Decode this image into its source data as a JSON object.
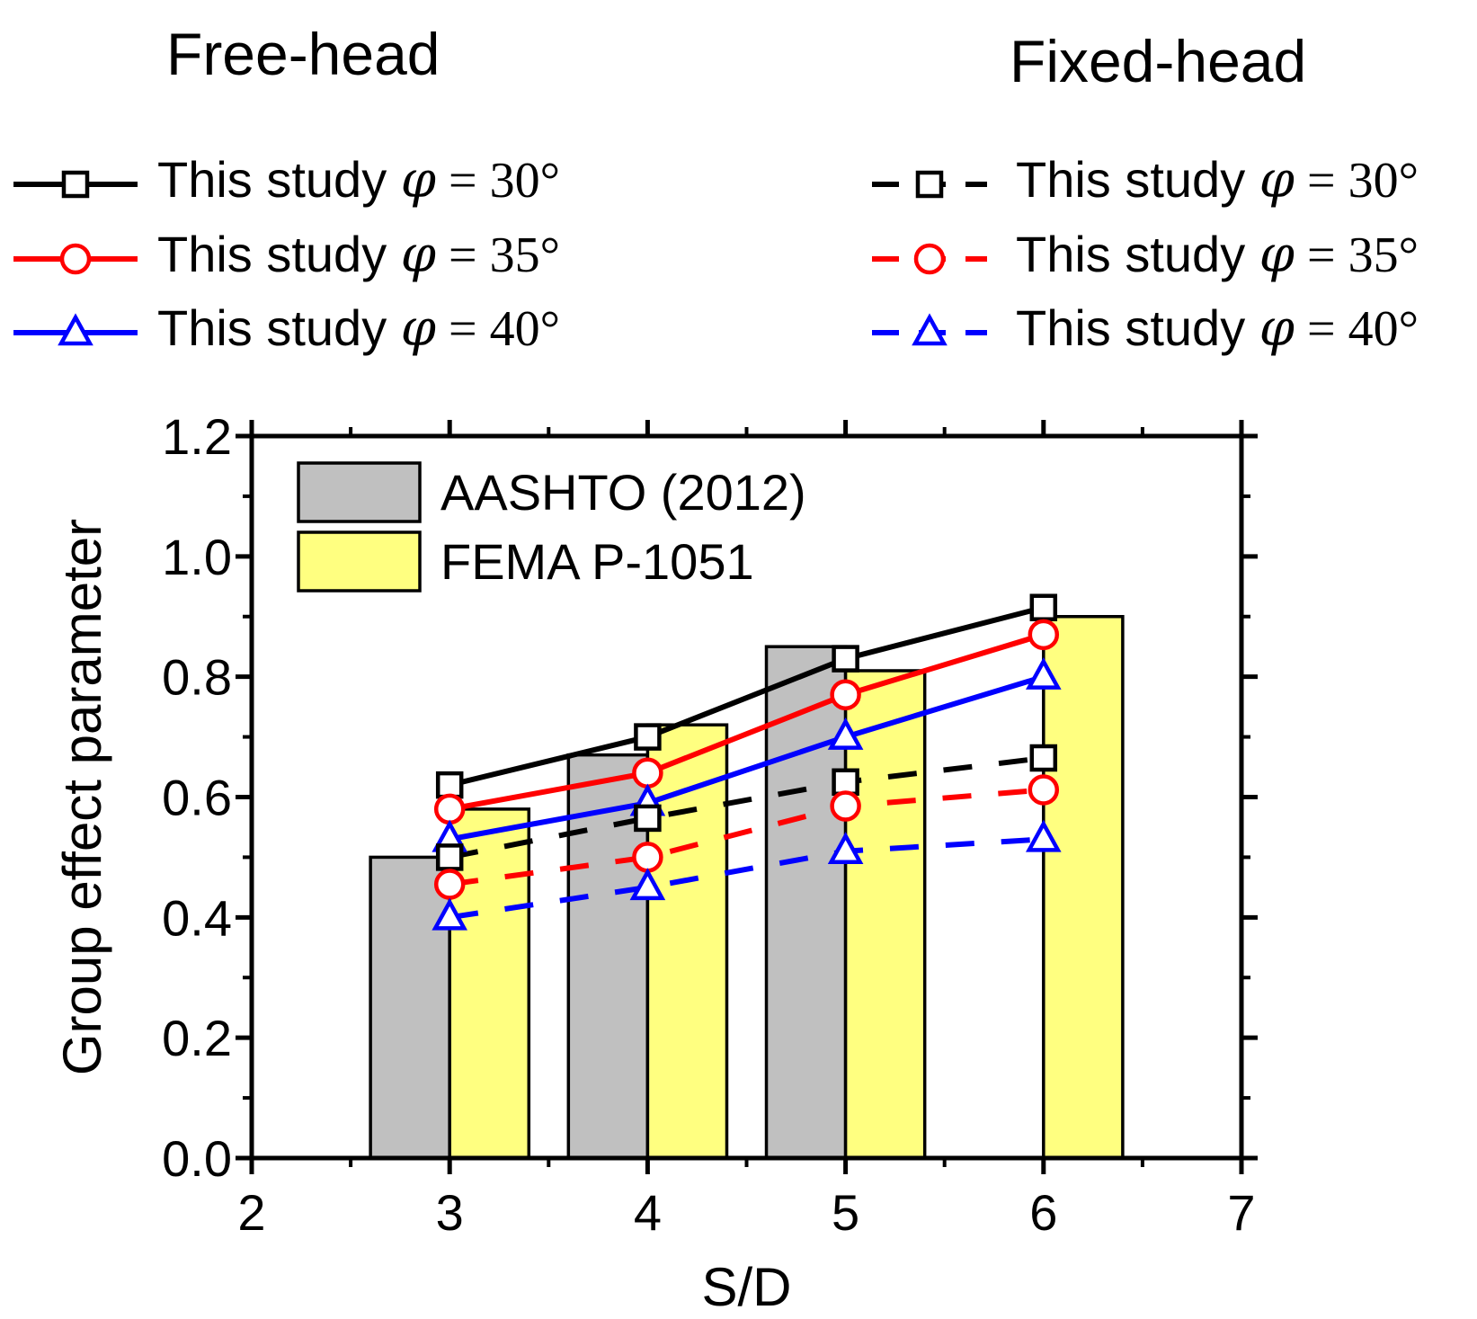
{
  "headings": {
    "left": "Free-head",
    "right": "Fixed-head"
  },
  "legend_prefix": "This study",
  "chart_data": {
    "type": "bar",
    "xlabel": "S/D",
    "ylabel": "Group effect parameter",
    "xlim": [
      2,
      7
    ],
    "ylim": [
      0,
      1.2
    ],
    "x_ticks": [
      "2",
      "3",
      "4",
      "5",
      "6",
      "7"
    ],
    "y_ticks": [
      "0.0",
      "0.2",
      "0.4",
      "0.6",
      "0.8",
      "1.0",
      "1.2"
    ],
    "bar_series": [
      {
        "name": "AASHTO (2012)",
        "color": "#c0c0c0",
        "x": [
          3,
          4,
          5,
          6
        ],
        "values": [
          0.5,
          0.67,
          0.85,
          null
        ]
      },
      {
        "name": "FEMA P-1051",
        "color": "#ffff80",
        "x": [
          3,
          4,
          5,
          6
        ],
        "values": [
          0.58,
          0.72,
          0.81,
          0.9
        ]
      }
    ],
    "line_series": [
      {
        "name": "This study φ = 30°",
        "group": "Free-head",
        "color": "#000000",
        "marker": "square",
        "dash": false,
        "phi": "30°",
        "x": [
          3,
          4,
          5,
          6
        ],
        "values": [
          0.62,
          0.7,
          0.83,
          0.915
        ]
      },
      {
        "name": "This study φ = 35°",
        "group": "Free-head",
        "color": "#ff0000",
        "marker": "circle",
        "dash": false,
        "phi": "35°",
        "x": [
          3,
          4,
          5,
          6
        ],
        "values": [
          0.58,
          0.64,
          0.77,
          0.87
        ]
      },
      {
        "name": "This study φ = 40°",
        "group": "Free-head",
        "color": "#0000ff",
        "marker": "triangle",
        "dash": false,
        "phi": "40°",
        "x": [
          3,
          4,
          5,
          6
        ],
        "values": [
          0.53,
          0.59,
          0.7,
          0.8
        ]
      },
      {
        "name": "This study φ = 30°",
        "group": "Fixed-head",
        "color": "#000000",
        "marker": "square",
        "dash": true,
        "phi": "30°",
        "x": [
          3,
          4,
          5,
          6
        ],
        "values": [
          0.5,
          0.565,
          0.625,
          0.665
        ]
      },
      {
        "name": "This study φ = 35°",
        "group": "Fixed-head",
        "color": "#ff0000",
        "marker": "circle",
        "dash": true,
        "phi": "35°",
        "x": [
          3,
          4,
          5,
          6
        ],
        "values": [
          0.455,
          0.5,
          0.585,
          0.612
        ]
      },
      {
        "name": "This study φ = 40°",
        "group": "Fixed-head",
        "color": "#0000ff",
        "marker": "triangle",
        "dash": true,
        "phi": "40°",
        "x": [
          3,
          4,
          5,
          6
        ],
        "values": [
          0.4,
          0.45,
          0.51,
          0.53
        ]
      }
    ]
  }
}
